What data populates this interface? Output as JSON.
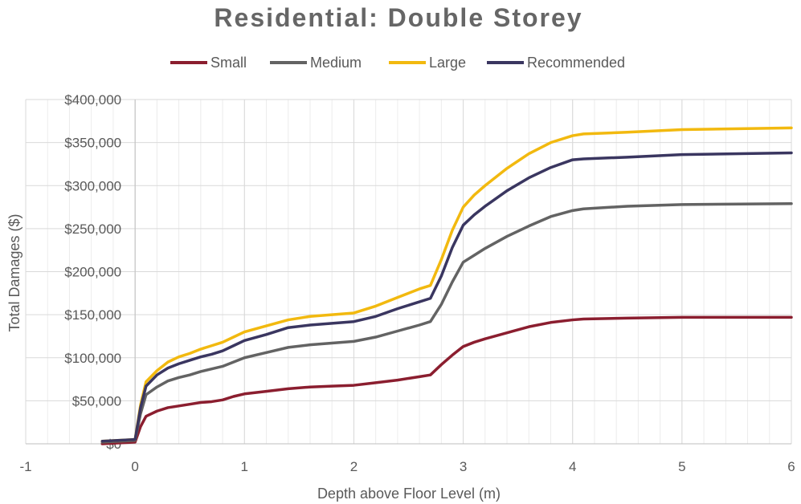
{
  "chart_data": {
    "type": "line",
    "title": "Residential: Double Storey",
    "xlabel": "Depth above Floor Level (m)",
    "ylabel": "Total Damages ($)",
    "xlim": [
      -1,
      6
    ],
    "ylim": [
      0,
      400000
    ],
    "x_ticks": [
      -1,
      0,
      1,
      2,
      3,
      4,
      5,
      6
    ],
    "x_tick_labels": [
      "-1",
      "0",
      "1",
      "2",
      "3",
      "4",
      "5",
      "6"
    ],
    "y_ticks": [
      0,
      50000,
      100000,
      150000,
      200000,
      250000,
      300000,
      350000,
      400000
    ],
    "y_tick_labels": [
      "$0",
      "$50,000",
      "$100,000",
      "$150,000",
      "$200,000",
      "$250,000",
      "$300,000",
      "$350,000",
      "$400,000"
    ],
    "grid": true,
    "legend_position": "top",
    "series": [
      {
        "name": "Small",
        "color": "#8b1e2f",
        "x": [
          -0.3,
          0,
          0.05,
          0.1,
          0.2,
          0.3,
          0.4,
          0.5,
          0.6,
          0.7,
          0.8,
          0.9,
          1.0,
          1.2,
          1.4,
          1.6,
          1.8,
          2.0,
          2.2,
          2.4,
          2.6,
          2.7,
          2.8,
          2.9,
          3.0,
          3.1,
          3.2,
          3.4,
          3.6,
          3.8,
          4.0,
          4.1,
          4.5,
          5.0,
          6.0
        ],
        "y": [
          0,
          2000,
          20000,
          32000,
          38000,
          42000,
          44000,
          46000,
          48000,
          49000,
          51000,
          55000,
          58000,
          61000,
          64000,
          66000,
          67000,
          68000,
          71000,
          74000,
          78000,
          80000,
          92000,
          103000,
          113000,
          118000,
          122000,
          129000,
          136000,
          141000,
          144000,
          145000,
          146000,
          147000,
          147000
        ]
      },
      {
        "name": "Medium",
        "color": "#636363",
        "x": [
          -0.3,
          0,
          0.05,
          0.1,
          0.2,
          0.3,
          0.4,
          0.5,
          0.6,
          0.7,
          0.8,
          0.9,
          1.0,
          1.2,
          1.4,
          1.6,
          1.8,
          2.0,
          2.2,
          2.4,
          2.6,
          2.7,
          2.8,
          2.9,
          3.0,
          3.1,
          3.2,
          3.4,
          3.6,
          3.8,
          4.0,
          4.1,
          4.5,
          5.0,
          6.0
        ],
        "y": [
          2000,
          4000,
          35000,
          57000,
          66000,
          73000,
          77000,
          80000,
          84000,
          87000,
          90000,
          95000,
          100000,
          106000,
          112000,
          115000,
          117000,
          119000,
          124000,
          131000,
          138000,
          142000,
          162000,
          188000,
          211000,
          219000,
          227000,
          241000,
          253000,
          264000,
          271000,
          273000,
          276000,
          278000,
          279000
        ]
      },
      {
        "name": "Large",
        "color": "#f2b90f",
        "x": [
          -0.3,
          0,
          0.05,
          0.1,
          0.2,
          0.3,
          0.4,
          0.5,
          0.6,
          0.7,
          0.8,
          0.9,
          1.0,
          1.2,
          1.4,
          1.6,
          1.8,
          2.0,
          2.2,
          2.4,
          2.6,
          2.7,
          2.8,
          2.9,
          3.0,
          3.1,
          3.2,
          3.4,
          3.6,
          3.8,
          4.0,
          4.1,
          4.5,
          5.0,
          6.0
        ],
        "y": [
          3000,
          5000,
          45000,
          72000,
          85000,
          95000,
          101000,
          105000,
          110000,
          114000,
          118000,
          124000,
          130000,
          137000,
          144000,
          148000,
          150000,
          152000,
          160000,
          170000,
          180000,
          184000,
          214000,
          248000,
          275000,
          289000,
          300000,
          320000,
          337000,
          350000,
          358000,
          360000,
          362000,
          365000,
          367000
        ]
      },
      {
        "name": "Recommended",
        "color": "#3a3660",
        "x": [
          -0.3,
          0,
          0.05,
          0.1,
          0.2,
          0.3,
          0.4,
          0.5,
          0.6,
          0.7,
          0.8,
          0.9,
          1.0,
          1.2,
          1.4,
          1.6,
          1.8,
          2.0,
          2.2,
          2.4,
          2.6,
          2.7,
          2.8,
          2.9,
          3.0,
          3.1,
          3.2,
          3.4,
          3.6,
          3.8,
          4.0,
          4.1,
          4.5,
          5.0,
          6.0
        ],
        "y": [
          3000,
          5000,
          42000,
          67000,
          80000,
          88000,
          93000,
          97000,
          101000,
          104000,
          108000,
          114000,
          120000,
          127000,
          135000,
          138000,
          140000,
          142000,
          148000,
          157000,
          165000,
          169000,
          195000,
          228000,
          254000,
          266000,
          276000,
          294000,
          309000,
          321000,
          330000,
          331000,
          333000,
          336000,
          338000
        ]
      }
    ]
  }
}
